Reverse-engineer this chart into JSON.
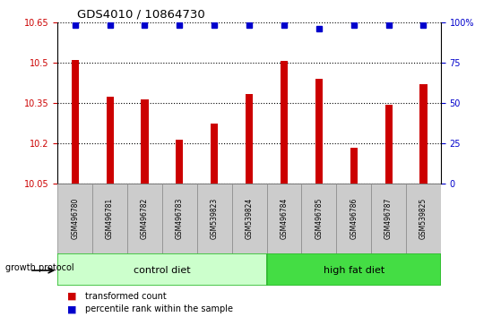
{
  "title": "GDS4010 / 10864730",
  "categories": [
    "GSM496780",
    "GSM496781",
    "GSM496782",
    "GSM496783",
    "GSM539823",
    "GSM539824",
    "GSM496784",
    "GSM496785",
    "GSM496786",
    "GSM496787",
    "GSM539825"
  ],
  "bar_values": [
    10.51,
    10.375,
    10.365,
    10.215,
    10.275,
    10.385,
    10.505,
    10.44,
    10.185,
    10.345,
    10.42
  ],
  "percentile_values": [
    98,
    98,
    98,
    98,
    98,
    98,
    98,
    96,
    98,
    98,
    98
  ],
  "bar_color": "#cc0000",
  "percentile_color": "#0000cc",
  "ylim_left": [
    10.05,
    10.65
  ],
  "ylim_right": [
    0,
    100
  ],
  "yticks_left": [
    10.05,
    10.2,
    10.35,
    10.5,
    10.65
  ],
  "ytick_labels_left": [
    "10.05",
    "10.2",
    "10.35",
    "10.5",
    "10.65"
  ],
  "yticks_right": [
    0,
    25,
    50,
    75,
    100
  ],
  "ytick_labels_right": [
    "0",
    "25",
    "50",
    "75",
    "100%"
  ],
  "groups": [
    {
      "label": "control diet",
      "count": 6,
      "color": "#ccffcc",
      "edge_color": "#33bb33"
    },
    {
      "label": "high fat diet",
      "count": 5,
      "color": "#44dd44",
      "edge_color": "#33bb33"
    }
  ],
  "group_protocol_label": "growth protocol",
  "legend_items": [
    {
      "label": "transformed count",
      "color": "#cc0000"
    },
    {
      "label": "percentile rank within the sample",
      "color": "#0000cc"
    }
  ],
  "bar_bottom": 10.05,
  "grid_color": "#000000",
  "xlabel_bg": "#cccccc",
  "xlabel_edge": "#888888"
}
